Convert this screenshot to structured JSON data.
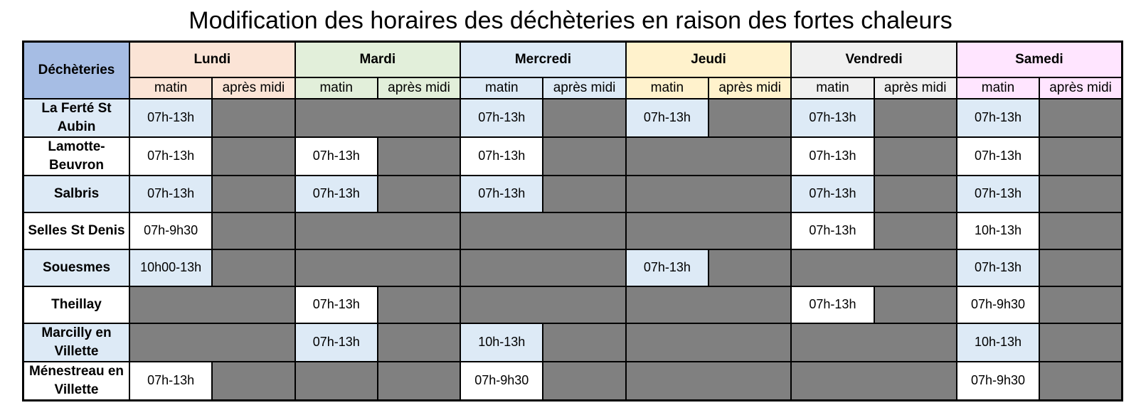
{
  "title": "Modification des horaires des déchèteries en raison des fortes chaleurs",
  "corner_label": "Déchèteries",
  "slot_labels": [
    "matin",
    "après midi"
  ],
  "days": [
    {
      "name": "Lundi",
      "color": "#fbe4d6"
    },
    {
      "name": "Mardi",
      "color": "#e2efda"
    },
    {
      "name": "Mercredi",
      "color": "#ddeaf6"
    },
    {
      "name": "Jeudi",
      "color": "#fff2cc"
    },
    {
      "name": "Vendredi",
      "color": "#f0f0f0"
    },
    {
      "name": "Samedi",
      "color": "#ffe5ff"
    }
  ],
  "closed_color": "#808080",
  "rows": [
    {
      "name": "La Ferté St Aubin",
      "shade": "blue",
      "slots": [
        "07h-13h",
        null,
        null,
        null,
        "07h-13h",
        null,
        "07h-13h",
        null,
        "07h-13h",
        null,
        "07h-13h",
        null
      ],
      "merged_closed_days": [
        1
      ]
    },
    {
      "name": "Lamotte-Beuvron",
      "shade": "white",
      "slots": [
        "07h-13h",
        null,
        "07h-13h",
        null,
        "07h-13h",
        null,
        null,
        null,
        "07h-13h",
        null,
        "07h-13h",
        null
      ],
      "merged_closed_days": [
        3
      ]
    },
    {
      "name": "Salbris",
      "shade": "blue",
      "slots": [
        "07h-13h",
        null,
        "07h-13h",
        null,
        "07h-13h",
        null,
        null,
        null,
        "07h-13h",
        null,
        "07h-13h",
        null
      ],
      "merged_closed_days": [
        3
      ]
    },
    {
      "name": "Selles St Denis",
      "shade": "white",
      "slots": [
        "07h-9h30",
        null,
        null,
        null,
        null,
        null,
        null,
        null,
        "07h-13h",
        null,
        "10h-13h",
        null
      ],
      "merged_closed_days": [
        1,
        2,
        3
      ]
    },
    {
      "name": "Souesmes",
      "shade": "blue",
      "slots": [
        "10h00-13h",
        null,
        null,
        null,
        null,
        null,
        "07h-13h",
        null,
        null,
        null,
        "07h-13h",
        null
      ],
      "merged_closed_days": [
        1,
        2,
        4
      ]
    },
    {
      "name": "Theillay",
      "shade": "white",
      "slots": [
        null,
        null,
        "07h-13h",
        null,
        null,
        null,
        null,
        null,
        "07h-13h",
        null,
        "07h-9h30",
        null
      ],
      "merged_closed_days": [
        0,
        2,
        3
      ]
    },
    {
      "name": "Marcilly en Villette",
      "shade": "blue",
      "slots": [
        null,
        null,
        "07h-13h",
        null,
        "10h-13h",
        null,
        null,
        null,
        null,
        null,
        "10h-13h",
        null
      ],
      "merged_closed_days": [
        0,
        3,
        4
      ]
    },
    {
      "name": "Ménestreau en Villette",
      "shade": "white",
      "slots": [
        "07h-13h",
        null,
        null,
        null,
        "07h-9h30",
        null,
        null,
        null,
        null,
        null,
        "07h-9h30",
        null
      ],
      "merged_closed_days": [
        3,
        4
      ]
    }
  ]
}
